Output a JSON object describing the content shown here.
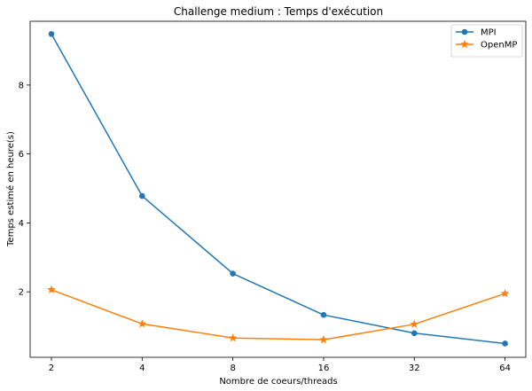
{
  "chart_data": {
    "type": "line",
    "title": "Challenge medium : Temps d'exécution",
    "xlabel": "Nombre de coeurs/threads",
    "ylabel": "Temps estimé en heure(s)",
    "x_scale": "log2",
    "categories": [
      "2",
      "4",
      "8",
      "16",
      "32",
      "64"
    ],
    "x": [
      2,
      4,
      8,
      16,
      32,
      64
    ],
    "xlim": [
      1.7,
      75
    ],
    "ylim": [
      0.1,
      9.85
    ],
    "yticks": [
      2,
      4,
      6,
      8
    ],
    "grid": false,
    "legend_position": "top-right",
    "series": [
      {
        "name": "MPI",
        "marker": "circle",
        "color": "#1f77b4",
        "values": [
          9.48,
          4.78,
          2.53,
          1.33,
          0.8,
          0.5
        ]
      },
      {
        "name": "OpenMP",
        "marker": "star",
        "color": "#ff7f0e",
        "values": [
          2.06,
          1.07,
          0.66,
          0.61,
          1.06,
          1.95
        ]
      }
    ]
  }
}
